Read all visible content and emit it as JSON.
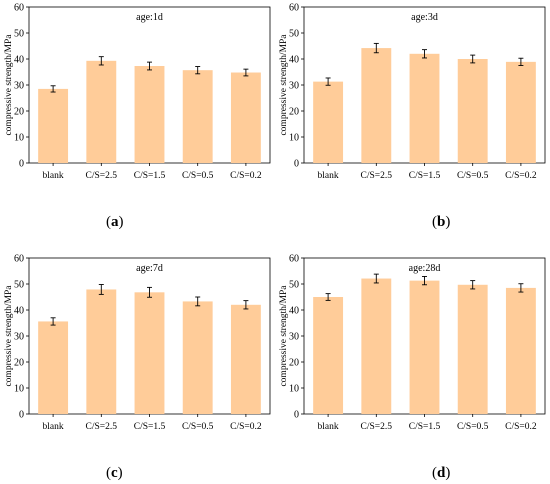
{
  "chart_data": [
    {
      "type": "bar",
      "title": "age:1d",
      "xlabel": "",
      "ylabel": "compressive strength/MPa",
      "ylim": [
        0,
        60
      ],
      "yticks": [
        0,
        10,
        20,
        30,
        40,
        50,
        60
      ],
      "categories": [
        "blank",
        "C/S=2.5",
        "C/S=1.5",
        "C/S=0.5",
        "C/S=0.2"
      ],
      "values": [
        28.5,
        39.3,
        37.3,
        35.7,
        34.8
      ],
      "errors": [
        1.2,
        1.6,
        1.5,
        1.4,
        1.3
      ],
      "grid": false,
      "bar_color": "#ffcc99",
      "caption_letter": "a"
    },
    {
      "type": "bar",
      "title": "age:3d",
      "xlabel": "",
      "ylabel": "compressive strength/MPa",
      "ylim": [
        0,
        60
      ],
      "yticks": [
        0,
        10,
        20,
        30,
        40,
        50,
        60
      ],
      "categories": [
        "blank",
        "C/S=2.5",
        "C/S=1.5",
        "C/S=0.5",
        "C/S=0.2"
      ],
      "values": [
        31.3,
        44.2,
        42.0,
        40.0,
        38.9
      ],
      "errors": [
        1.4,
        1.8,
        1.6,
        1.5,
        1.4
      ],
      "grid": false,
      "bar_color": "#ffcc99",
      "caption_letter": "b"
    },
    {
      "type": "bar",
      "title": "age:7d",
      "xlabel": "",
      "ylabel": "compressive strength/MPa",
      "ylim": [
        0,
        60
      ],
      "yticks": [
        0,
        10,
        20,
        30,
        40,
        50,
        60
      ],
      "categories": [
        "blank",
        "C/S=2.5",
        "C/S=1.5",
        "C/S=0.5",
        "C/S=0.2"
      ],
      "values": [
        35.6,
        47.9,
        46.8,
        43.3,
        42.0
      ],
      "errors": [
        1.4,
        1.9,
        1.9,
        1.7,
        1.6
      ],
      "grid": false,
      "bar_color": "#ffcc99",
      "caption_letter": "c"
    },
    {
      "type": "bar",
      "title": "age:28d",
      "xlabel": "",
      "ylabel": "compressive strength/MPa",
      "ylim": [
        0,
        60
      ],
      "yticks": [
        0,
        10,
        20,
        30,
        40,
        50,
        60
      ],
      "categories": [
        "blank",
        "C/S=2.5",
        "C/S=1.5",
        "C/S=0.5",
        "C/S=0.2"
      ],
      "values": [
        45.0,
        52.1,
        51.3,
        49.7,
        48.5
      ],
      "errors": [
        1.3,
        1.7,
        1.6,
        1.6,
        1.6
      ],
      "grid": false,
      "bar_color": "#ffcc99",
      "caption_letter": "d"
    }
  ]
}
